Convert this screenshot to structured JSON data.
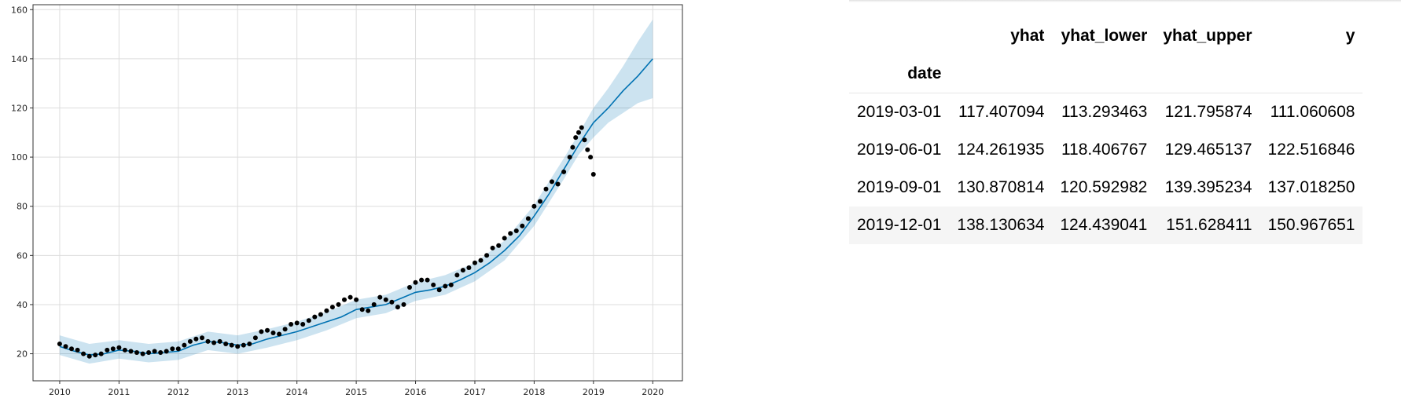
{
  "chart_data": {
    "type": "line",
    "title": "",
    "xlabel": "",
    "ylabel": "",
    "xlim": [
      2009.55,
      2020.5
    ],
    "ylim": [
      9,
      162
    ],
    "x_ticks": [
      2010,
      2011,
      2012,
      2013,
      2014,
      2015,
      2016,
      2017,
      2018,
      2019,
      2020
    ],
    "x_tick_labels": [
      "2010",
      "2011",
      "2012",
      "2013",
      "2014",
      "2015",
      "2016",
      "2017",
      "2018",
      "2019",
      "2020"
    ],
    "y_ticks": [
      20,
      40,
      60,
      80,
      100,
      120,
      140,
      160
    ],
    "y_tick_labels": [
      "20",
      "40",
      "60",
      "80",
      "100",
      "120",
      "140",
      "160"
    ],
    "grid": true,
    "colors": {
      "forecast": "#0072B2",
      "interval": "#0072B2",
      "observed": "#000000"
    },
    "series": [
      {
        "type": "line",
        "x": [
          2010.0,
          2010.25,
          2010.5,
          2010.75,
          2011.0,
          2011.25,
          2011.5,
          2011.75,
          2012.0,
          2012.25,
          2012.5,
          2012.75,
          2013.0,
          2013.25,
          2013.5,
          2013.75,
          2014.0,
          2014.25,
          2014.5,
          2014.75,
          2015.0,
          2015.25,
          2015.5,
          2015.75,
          2016.0,
          2016.25,
          2016.5,
          2016.75,
          2017.0,
          2017.25,
          2017.5,
          2017.75,
          2018.0,
          2018.25,
          2018.5,
          2018.75,
          2019.0,
          2019.25,
          2019.5,
          2019.75,
          2020.0
        ],
        "y": [
          23,
          21,
          19.5,
          20,
          21.5,
          21,
          20,
          20.5,
          21,
          23.5,
          25,
          24.5,
          23.5,
          24,
          26,
          27.5,
          29,
          31,
          33,
          35,
          38,
          39,
          40,
          42.5,
          45,
          46,
          47.5,
          50,
          53,
          57,
          62,
          68,
          76,
          85,
          95,
          105,
          114,
          120,
          127,
          133,
          140
        ]
      },
      {
        "type": "band",
        "x": [
          2010.0,
          2010.5,
          2011.0,
          2011.5,
          2012.0,
          2012.5,
          2013.0,
          2013.5,
          2014.0,
          2014.5,
          2015.0,
          2015.5,
          2016.0,
          2016.5,
          2017.0,
          2017.5,
          2018.0,
          2018.5,
          2018.75,
          2019.0,
          2019.25,
          2019.5,
          2019.75,
          2020.0
        ],
        "y_lower": [
          19.5,
          16,
          18,
          16.5,
          17.5,
          21.5,
          20,
          22.5,
          25.5,
          29.5,
          34.5,
          36.5,
          41.5,
          44,
          49.5,
          58,
          72,
          91,
          101,
          108,
          114,
          118,
          122,
          124
        ],
        "y_upper": [
          27.5,
          24,
          25.5,
          24,
          25,
          29,
          27.5,
          30,
          33,
          37,
          42,
          44,
          49,
          52,
          57,
          66,
          80.5,
          99.5,
          109.5,
          120,
          128,
          137,
          147,
          156
        ]
      },
      {
        "type": "scatter",
        "x": [
          2010.0,
          2010.1,
          2010.2,
          2010.3,
          2010.4,
          2010.5,
          2010.6,
          2010.7,
          2010.8,
          2010.9,
          2011.0,
          2011.1,
          2011.2,
          2011.3,
          2011.4,
          2011.5,
          2011.6,
          2011.7,
          2011.8,
          2011.9,
          2012.0,
          2012.1,
          2012.2,
          2012.3,
          2012.4,
          2012.5,
          2012.6,
          2012.7,
          2012.8,
          2012.9,
          2013.0,
          2013.1,
          2013.2,
          2013.3,
          2013.4,
          2013.5,
          2013.6,
          2013.7,
          2013.8,
          2013.9,
          2014.0,
          2014.1,
          2014.2,
          2014.3,
          2014.4,
          2014.5,
          2014.6,
          2014.7,
          2014.8,
          2014.9,
          2015.0,
          2015.1,
          2015.2,
          2015.3,
          2015.4,
          2015.5,
          2015.6,
          2015.7,
          2015.8,
          2015.9,
          2016.0,
          2016.1,
          2016.2,
          2016.3,
          2016.4,
          2016.5,
          2016.6,
          2016.7,
          2016.8,
          2016.9,
          2017.0,
          2017.1,
          2017.2,
          2017.3,
          2017.4,
          2017.5,
          2017.6,
          2017.7,
          2017.8,
          2017.9,
          2018.0,
          2018.1,
          2018.2,
          2018.3,
          2018.4,
          2018.5,
          2018.6,
          2018.65,
          2018.7,
          2018.75,
          2018.8,
          2018.85,
          2018.9,
          2018.95,
          2019.0
        ],
        "y": [
          24,
          23,
          22,
          21.5,
          20,
          19,
          19.5,
          20,
          21.5,
          22,
          22.5,
          21.5,
          21,
          20.5,
          20,
          20.5,
          21,
          20.5,
          21,
          22,
          22,
          23.5,
          25,
          26,
          26.5,
          25,
          24.5,
          25,
          24,
          23.5,
          23,
          23.5,
          24,
          26.5,
          29,
          29.5,
          28.5,
          28,
          30,
          32,
          32.5,
          32,
          33.5,
          35,
          36,
          37.5,
          39,
          40,
          42,
          43,
          42,
          38,
          37.5,
          40,
          43,
          42,
          41,
          39,
          40,
          47,
          49,
          50,
          50,
          48,
          46,
          47.5,
          48,
          52,
          54,
          55,
          57,
          58,
          60,
          63,
          64,
          67,
          69,
          70,
          72,
          75,
          80,
          82,
          87,
          90,
          89,
          94,
          100,
          104,
          108,
          110,
          112,
          107,
          103,
          100,
          93
        ]
      }
    ]
  },
  "table": {
    "columns": [
      "yhat",
      "yhat_lower",
      "yhat_upper",
      "y"
    ],
    "index_name": "date",
    "rows": [
      {
        "date": "2019-03-01",
        "yhat": "117.407094",
        "yhat_lower": "113.293463",
        "yhat_upper": "121.795874",
        "y": "111.060608"
      },
      {
        "date": "2019-06-01",
        "yhat": "124.261935",
        "yhat_lower": "118.406767",
        "yhat_upper": "129.465137",
        "y": "122.516846"
      },
      {
        "date": "2019-09-01",
        "yhat": "130.870814",
        "yhat_lower": "120.592982",
        "yhat_upper": "139.395234",
        "y": "137.018250"
      },
      {
        "date": "2019-12-01",
        "yhat": "138.130634",
        "yhat_lower": "124.439041",
        "yhat_upper": "151.628411",
        "y": "150.967651"
      }
    ]
  }
}
